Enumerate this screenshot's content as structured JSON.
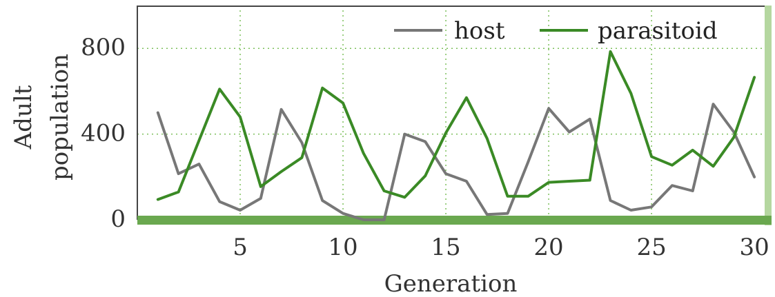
{
  "chart_data": {
    "type": "line",
    "xlabel": "Generation",
    "ylabel": [
      "Adult",
      "population"
    ],
    "xlim": [
      0,
      30.5
    ],
    "ylim": [
      0,
      1000
    ],
    "xticks": [
      5,
      10,
      15,
      20,
      25,
      30
    ],
    "yticks": [
      0,
      400,
      800
    ],
    "grid": true,
    "legend_position": "top-right",
    "x": [
      1,
      2,
      3,
      4,
      5,
      6,
      7,
      8,
      9,
      10,
      11,
      12,
      13,
      14,
      15,
      16,
      17,
      18,
      19,
      20,
      21,
      22,
      23,
      24,
      25,
      26,
      27,
      28,
      29,
      30
    ],
    "series": [
      {
        "name": "host",
        "color": "#777777",
        "values": [
          500,
          215,
          260,
          85,
          45,
          100,
          515,
          360,
          90,
          30,
          0,
          0,
          400,
          365,
          215,
          180,
          25,
          30,
          270,
          520,
          410,
          470,
          90,
          45,
          60,
          160,
          135,
          540,
          410,
          200
        ]
      },
      {
        "name": "parasitoid",
        "color": "#3a8a25",
        "values": [
          95,
          130,
          370,
          610,
          480,
          155,
          225,
          290,
          615,
          545,
          310,
          135,
          105,
          205,
          405,
          570,
          380,
          110,
          110,
          175,
          180,
          185,
          785,
          590,
          295,
          255,
          325,
          250,
          385,
          665
        ]
      }
    ]
  }
}
